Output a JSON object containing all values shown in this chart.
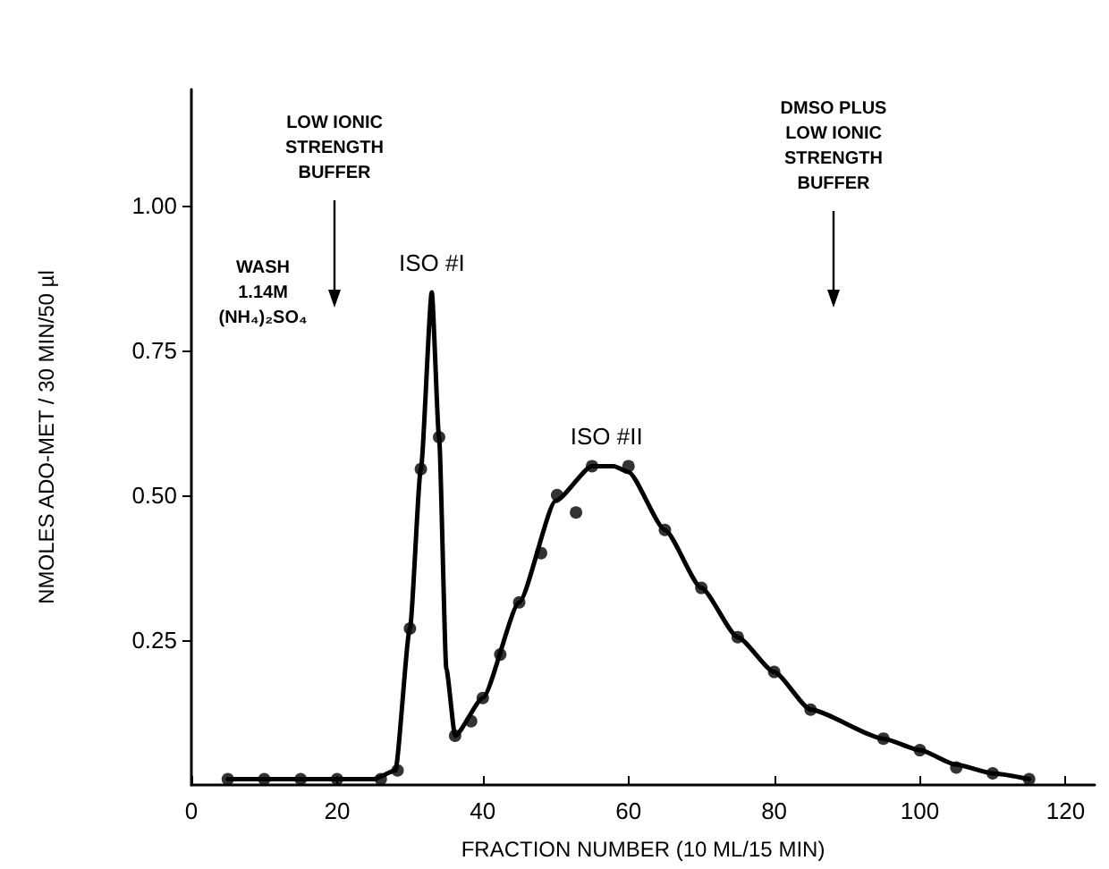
{
  "chart_data": {
    "type": "scatter",
    "xlabel": "FRACTION NUMBER (10 ML/15 MIN)",
    "ylabel": "NMOLES ADO-MET / 30 MIN/50 µl",
    "annotations": [
      "LOW IONIC\nSTRENGTH\nBUFFER",
      "DMSO PLUS\nLOW IONIC\nSTRENGTH\nBUFFER",
      "WASH\n1.14M\n(NH₄)₂SO₄",
      {
        "text": "ISO #I",
        "x": 33,
        "y": 0.85
      },
      {
        "text": "ISO #II",
        "x": 57,
        "y": 0.55
      }
    ],
    "series": [
      {
        "color": "#000000",
        "marker": "circle",
        "x": [
          5,
          10,
          15,
          20,
          26,
          28.3,
          30,
          31.5,
          34,
          36.2,
          38.4,
          40,
          42.4,
          45,
          48,
          50.2,
          52.8,
          55,
          60,
          65,
          70,
          75,
          80,
          85,
          95,
          100,
          105,
          110,
          115
        ],
        "values": [
          0.01,
          0.01,
          0.01,
          0.01,
          0.01,
          0.025,
          0.27,
          0.545,
          0.6,
          0.085,
          0.11,
          0.15,
          0.225,
          0.315,
          0.4,
          0.5,
          0.47,
          0.55,
          0.55,
          0.44,
          0.34,
          0.255,
          0.195,
          0.13,
          0.08,
          0.06,
          0.03,
          0.02,
          0.01
        ]
      },
      {
        "type": "line",
        "color": "#000000",
        "marker": "none",
        "line_style": "solid",
        "x": [
          5,
          25,
          28,
          30,
          31.5,
          33,
          34,
          35,
          36.2,
          40,
          45,
          50,
          55,
          58,
          60,
          65,
          70,
          75,
          80,
          85,
          95,
          100,
          105,
          110,
          115
        ],
        "values": [
          0.01,
          0.01,
          0.025,
          0.27,
          0.545,
          0.85,
          0.6,
          0.2,
          0.085,
          0.15,
          0.315,
          0.49,
          0.55,
          0.55,
          0.54,
          0.44,
          0.34,
          0.255,
          0.195,
          0.13,
          0.08,
          0.06,
          0.035,
          0.02,
          0.01
        ]
      }
    ],
    "xlim": [
      0,
      124
    ],
    "xticks": [
      0,
      20,
      40,
      60,
      80,
      100,
      120
    ],
    "ylim": [
      0,
      1.2
    ],
    "yticks": [
      {
        "value": 0.25,
        "label": "0.25"
      },
      {
        "value": 0.5,
        "label": "0.50"
      },
      {
        "value": 0.75,
        "label": "0.75"
      },
      {
        "value": 1,
        "label": "1.00"
      }
    ],
    "grid": false
  }
}
